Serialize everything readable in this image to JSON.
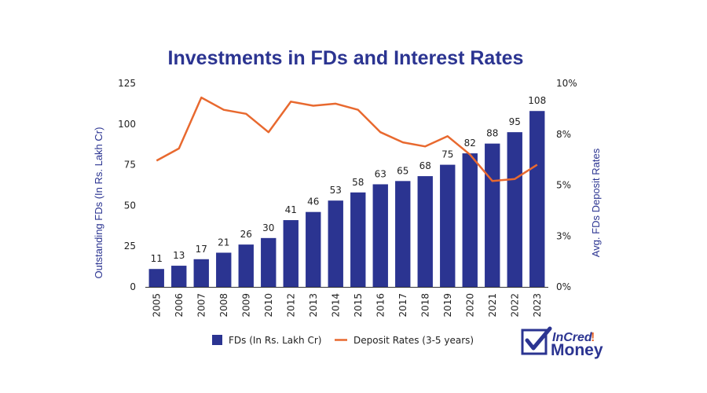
{
  "chart_data": {
    "type": "bar",
    "title": "Investments in FDs and Interest Rates",
    "categories": [
      "2005",
      "2006",
      "2007",
      "2008",
      "2009",
      "2010",
      "2012",
      "2013",
      "2014",
      "2015",
      "2016",
      "2017",
      "2018",
      "2019",
      "2020",
      "2021",
      "2022",
      "2023"
    ],
    "series": [
      {
        "name": "FDs (In Rs. Lakh Cr)",
        "type": "bar",
        "axis": "left",
        "color": "#2b3491",
        "values": [
          11,
          13,
          17,
          21,
          26,
          30,
          41,
          46,
          53,
          58,
          63,
          65,
          68,
          75,
          82,
          88,
          95,
          108
        ]
      },
      {
        "name": "Deposit Rates (3-5 years)",
        "type": "line",
        "axis": "right",
        "color": "#e8692f",
        "values": [
          6.2,
          6.8,
          9.3,
          8.7,
          8.5,
          7.6,
          9.1,
          8.9,
          9.0,
          8.7,
          7.6,
          7.1,
          6.9,
          7.4,
          6.5,
          5.2,
          5.3,
          6.0
        ]
      }
    ],
    "ylabel": "Outstanding FDs (In Rs. Lakh Cr)",
    "ylim": [
      0,
      125
    ],
    "yticks": [
      0,
      25,
      50,
      75,
      100,
      125
    ],
    "y2label": "Avg. FDs Deposit Rates",
    "y2lim": [
      0,
      10
    ],
    "y2ticks": [
      0,
      2.5,
      5,
      7.5,
      10
    ],
    "y2ticklabels": [
      "0%",
      "3%",
      "5%",
      "8%",
      "10%"
    ],
    "grid": false,
    "legend": "bottom"
  },
  "logo": {
    "line1": "InCred",
    "line2": "Money",
    "color": "#2b3491",
    "accent": "#e8692f"
  }
}
